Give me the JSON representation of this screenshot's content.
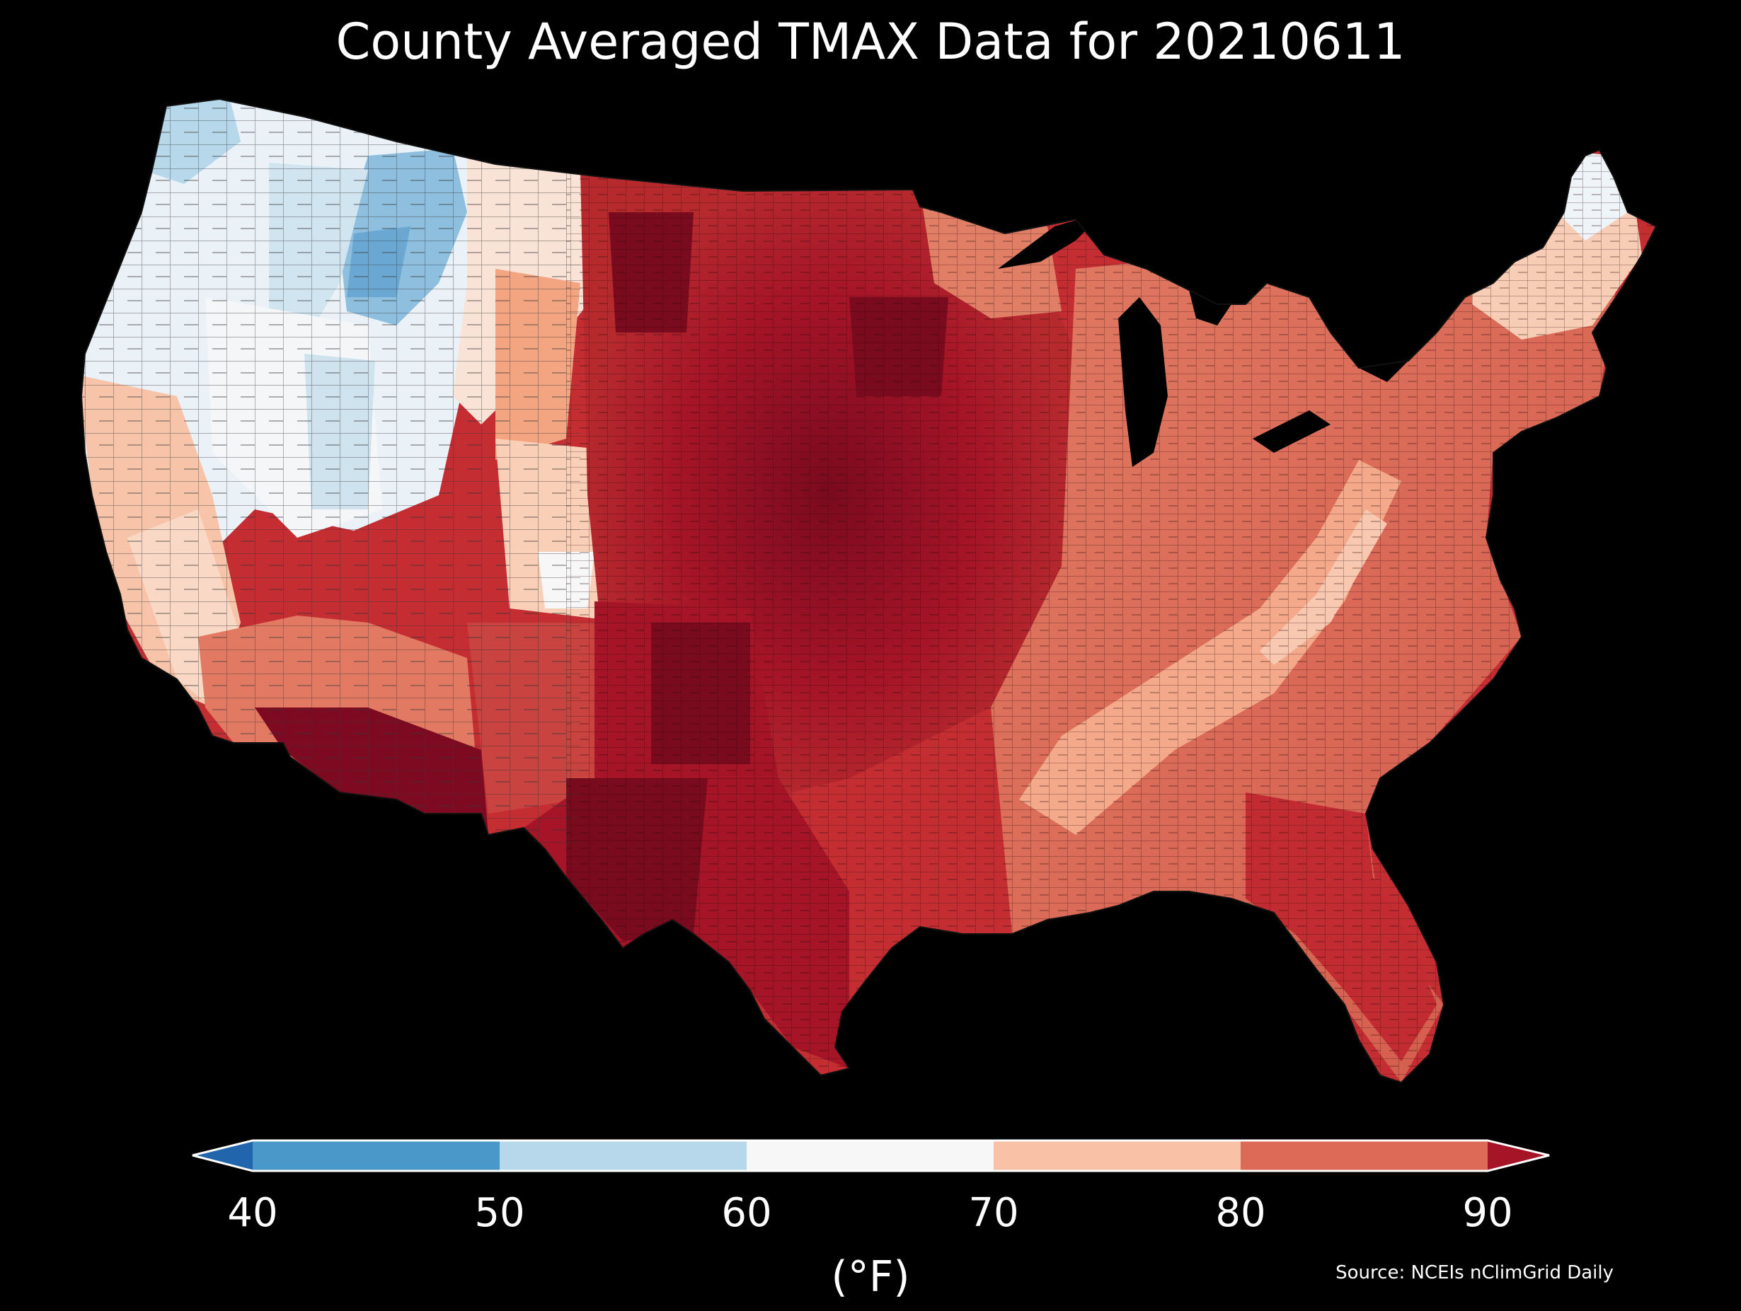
{
  "title": "County Averaged TMAX Data for 20210611",
  "colorbar": {
    "unit_label": "(°F)",
    "ticks": [
      "40",
      "50",
      "60",
      "70",
      "80",
      "90"
    ],
    "bins": [
      {
        "range": "<40",
        "color": "#2166ac"
      },
      {
        "range": "40-50",
        "color": "#4a98c9"
      },
      {
        "range": "50-60",
        "color": "#b7d7ea"
      },
      {
        "range": "60-70",
        "color": "#f7f7f7"
      },
      {
        "range": "70-80",
        "color": "#f9c2a6"
      },
      {
        "range": "80-90",
        "color": "#dc6a57"
      },
      {
        "range": ">90",
        "color": "#a51427"
      }
    ]
  },
  "source": "Source: NCEIs nClimGrid Daily",
  "map": {
    "region": "Contiguous United States counties",
    "background": "#000000",
    "county_border_color": "#333333"
  },
  "chart_data": {
    "type": "heatmap",
    "title": "County Averaged TMAX Data for 20210611",
    "colorbar_label": "(°F)",
    "colorbar_ticks": [
      40,
      50,
      60,
      70,
      80,
      90
    ],
    "colorbar_extend": "both"
  }
}
